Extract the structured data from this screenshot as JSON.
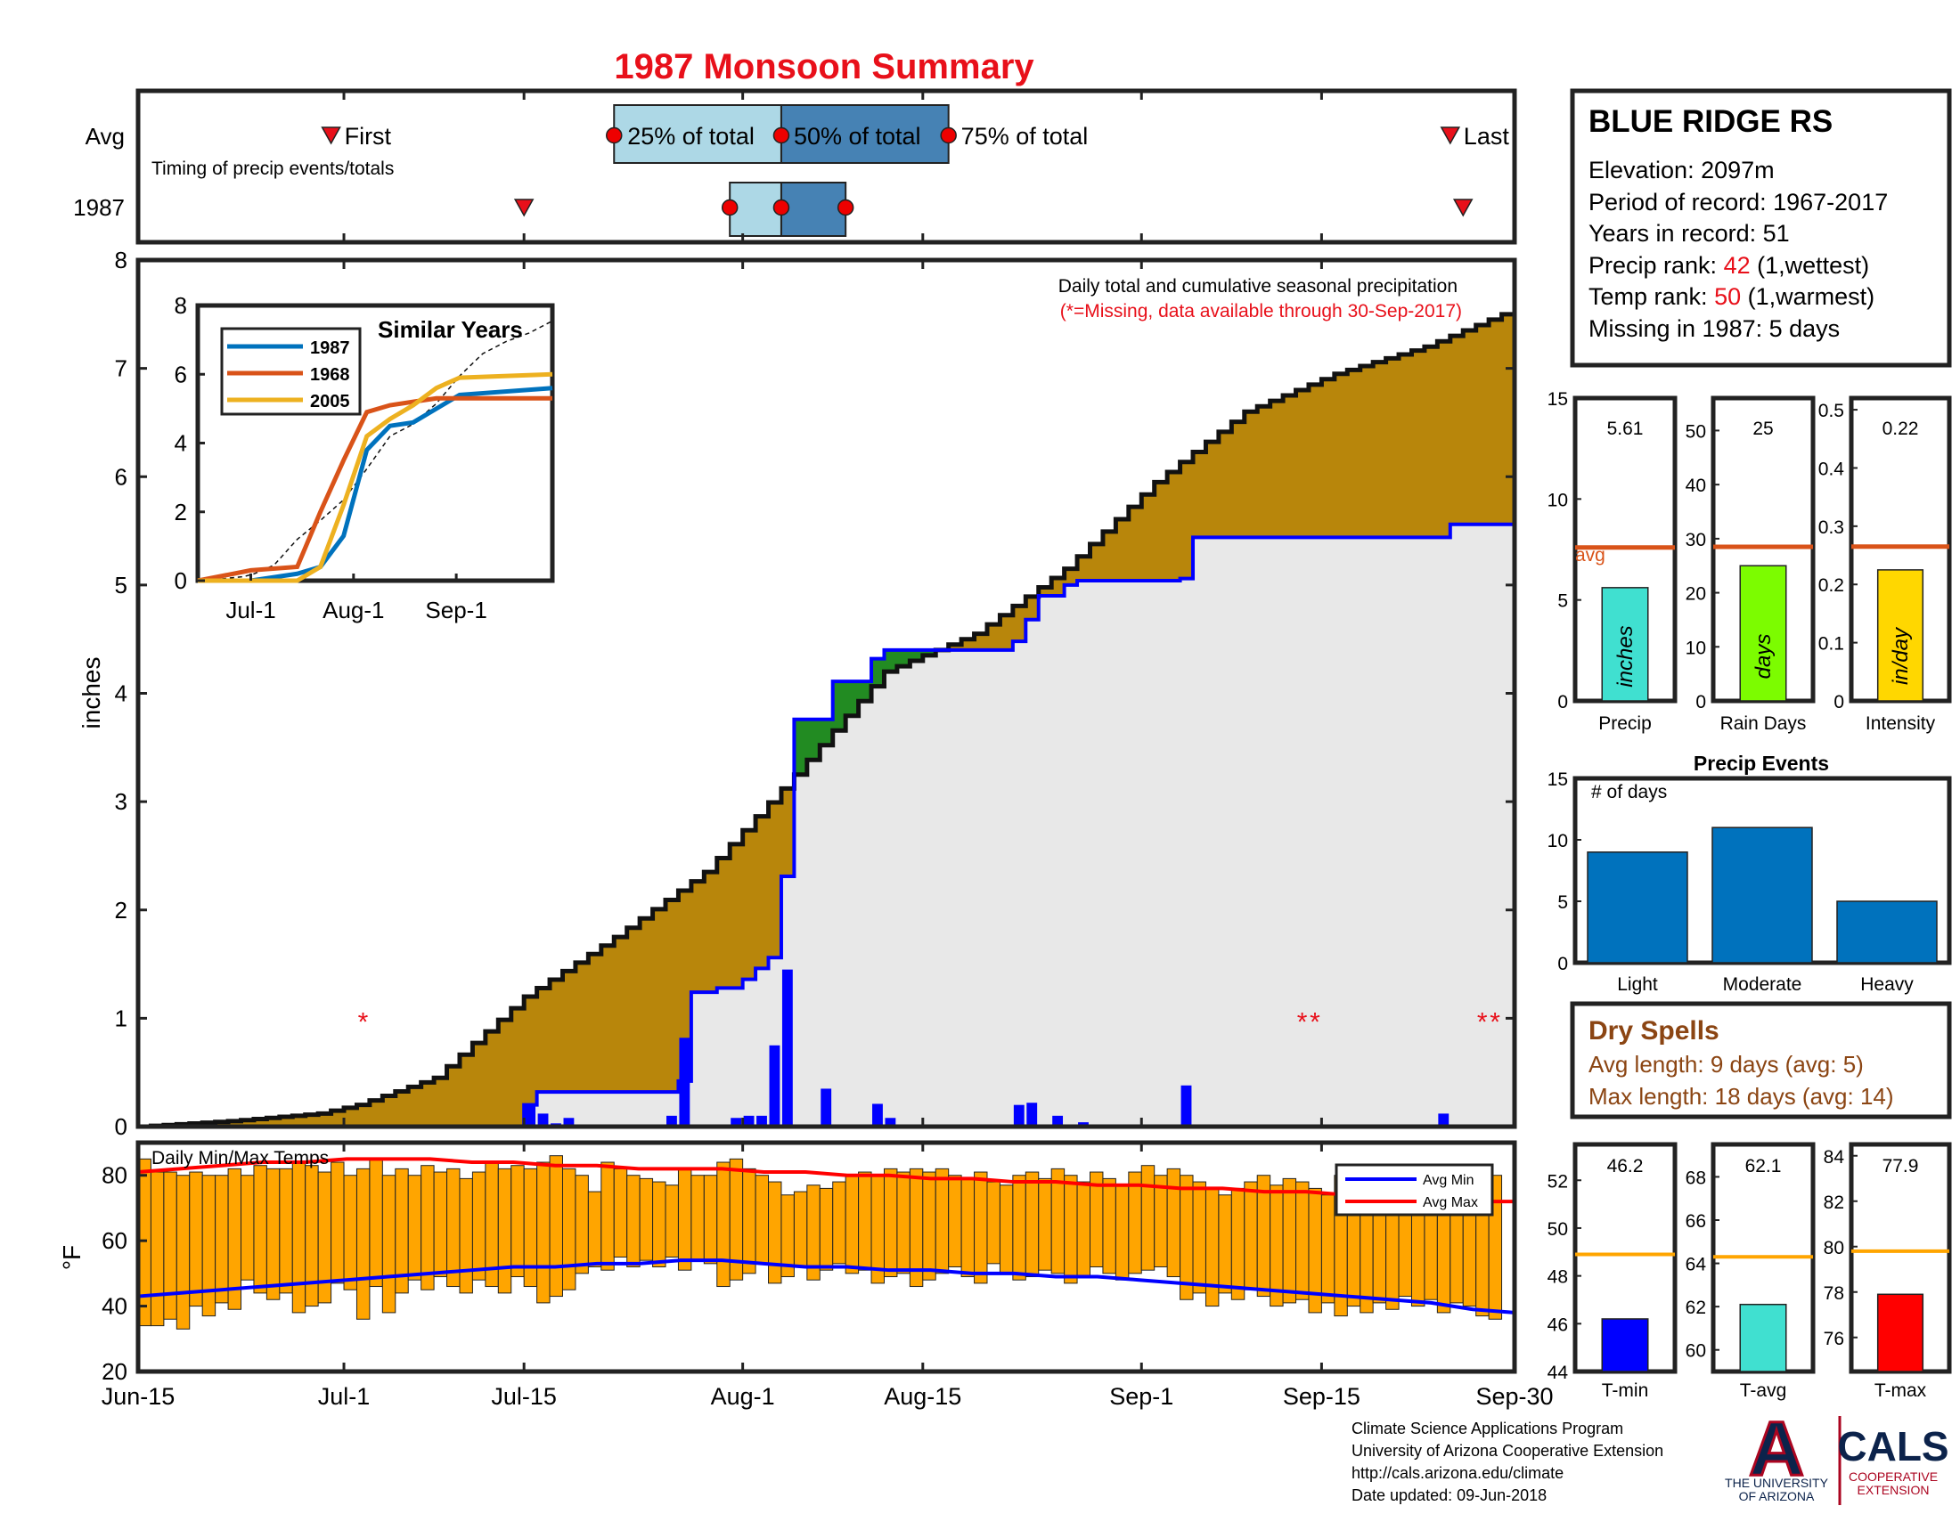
{
  "title": "1987 Monsoon Summary",
  "colors": {
    "title": "#e8101a",
    "cum_avg_fill": "#b8860b",
    "wet_fill": "#228b22",
    "normal_fill": "#e8e8e8",
    "line_1987": "#0000ff",
    "daily_bar": "#0000ff",
    "temp_bar": "#ffa500",
    "avg_min": "#0000ff",
    "avg_max": "#ff0000",
    "avg_ref_line": "#d95319",
    "temp_ref_line": "#ffa500",
    "q1_box": "#add8e6",
    "q2_box": "#4682b4",
    "events_bar": "#0072bd",
    "dry_spell_text": "#8b4513",
    "rank_highlight": "#e8101a"
  },
  "timing": {
    "row_labels": [
      "Avg",
      "1987"
    ],
    "caption": "Timing of precip events/totals",
    "first_label": "First",
    "last_label": "Last",
    "q25_label": "25% of total",
    "q50_label": "50% of total",
    "q75_label": "75% of total",
    "avg": {
      "first": "2024-06-30",
      "q25": "2024-07-22",
      "q50": "2024-08-04",
      "q75": "2024-08-17",
      "last": "2024-09-25"
    },
    "y1987": {
      "first": "2024-07-15",
      "q25": "2024-07-31",
      "q50": "2024-08-04",
      "q75": "2024-08-09",
      "last": "2024-09-26"
    }
  },
  "main_chart": {
    "caption": "Daily total and cumulative seasonal precipitation",
    "missing_note": "(*=Missing, data available through 30-Sep-2017)",
    "ylabel": "inches",
    "ylim": [
      0,
      8
    ],
    "yticks": [
      "0",
      "1",
      "2",
      "3",
      "4",
      "5",
      "6",
      "7",
      "8"
    ],
    "missing_marker": "*"
  },
  "inset": {
    "title": "Similar Years",
    "ylim": [
      0,
      8
    ],
    "yticks": [
      "0",
      "2",
      "4",
      "6",
      "8"
    ],
    "xticks": [
      "Jul-1",
      "Aug-1",
      "Sep-1"
    ],
    "legend": [
      "1987",
      "1968",
      "2005"
    ],
    "series_colors": [
      "#0072bd",
      "#d95319",
      "#edb120"
    ]
  },
  "temps": {
    "caption": "Daily Min/Max Temps",
    "ylabel": "°F",
    "ylim": [
      20,
      90
    ],
    "yticks": [
      "20",
      "40",
      "60",
      "80"
    ],
    "legend_min": "Avg Min",
    "legend_max": "Avg Max"
  },
  "x_axis": {
    "ticks": [
      "Jun-15",
      "Jul-1",
      "Jul-15",
      "Aug-1",
      "Aug-15",
      "Sep-1",
      "Sep-15",
      "Sep-30"
    ]
  },
  "station": {
    "name": "BLUE RIDGE RS",
    "elevation": "Elevation: 2097m",
    "period": "Period of record: 1967-2017",
    "years": "Years in record: 51",
    "precip_rank_prefix": "Precip rank: ",
    "precip_rank_value": "42",
    "precip_rank_suffix": " (1,wettest)",
    "temp_rank_prefix": "Temp rank: ",
    "temp_rank_value": "50",
    "temp_rank_suffix": " (1,warmest)",
    "missing": "Missing in 1987: 5 days"
  },
  "stats": {
    "avg_label": "avg",
    "precip": {
      "value_label": "5.61",
      "value": 5.61,
      "avg": 7.6,
      "ymax": 15,
      "yticks": [
        "0",
        "5",
        "10",
        "15"
      ],
      "unit": "inches",
      "label": "Precip",
      "color": "#40e0d0"
    },
    "raindays": {
      "value_label": "25",
      "value": 25,
      "avg": 28.5,
      "ymax": 56,
      "yticks": [
        "0",
        "10",
        "20",
        "30",
        "40",
        "50"
      ],
      "unit": "days",
      "label": "Rain Days",
      "color": "#7cfc00"
    },
    "intensity": {
      "value_label": "0.22",
      "value": 0.225,
      "avg": 0.265,
      "ymax": 0.52,
      "yticks": [
        "0",
        "0.1",
        "0.2",
        "0.3",
        "0.4",
        "0.5"
      ],
      "unit": "in/day",
      "label": "Intensity",
      "color": "#ffd700"
    }
  },
  "events": {
    "title": "Precip Events",
    "ylabel": "# of days",
    "categories": [
      "Light",
      "Moderate",
      "Heavy"
    ],
    "values": [
      9,
      11,
      5
    ],
    "ymax": 15,
    "yticks": [
      "0",
      "5",
      "10",
      "15"
    ]
  },
  "dry_spells": {
    "title": "Dry Spells",
    "avg_length": "Avg length: 9 days (avg: 5)",
    "max_length": "Max length: 18 days (avg: 14)"
  },
  "temp_stats": {
    "tmin": {
      "value_label": "46.2",
      "value": 46.2,
      "avg": 48.9,
      "ylim": [
        44,
        53.5
      ],
      "yticks": [
        "44",
        "46",
        "48",
        "50",
        "52"
      ],
      "label": "T-min",
      "color": "#0000ff"
    },
    "tavg": {
      "value_label": "62.1",
      "value": 62.1,
      "avg": 64.3,
      "ylim": [
        59,
        69.5
      ],
      "yticks": [
        "60",
        "62",
        "64",
        "66",
        "68"
      ],
      "label": "T-avg",
      "color": "#40e0d0"
    },
    "tmax": {
      "value_label": "77.9",
      "value": 77.9,
      "avg": 79.8,
      "ylim": [
        74.5,
        84.5
      ],
      "yticks": [
        "76",
        "78",
        "80",
        "82",
        "84"
      ],
      "label": "T-max",
      "color": "#ff0000"
    }
  },
  "footer": {
    "line1": "Climate Science Applications Program",
    "line2": "University of Arizona Cooperative Extension",
    "line3": "http://cals.arizona.edu/climate",
    "line4": " Date updated: 09-Jun-2018"
  },
  "logo": {
    "letter": "A",
    "ua_line1": "THE UNIVERSITY",
    "ua_line2": "OF ARIZONA",
    "cals": "CALS",
    "cals_line1": "COOPERATIVE",
    "cals_line2": "EXTENSION"
  },
  "chart_data": {
    "type": "area",
    "title": "1987 Monsoon Summary",
    "ylabel": "inches",
    "ylim": [
      0,
      8
    ],
    "daily_precip_1987": [
      [
        "2024-07-15",
        0.2
      ],
      [
        "2024-07-16",
        0.12
      ],
      [
        "2024-07-17",
        0.03
      ],
      [
        "2024-07-18",
        0.08
      ],
      [
        "2024-07-26",
        0.1
      ],
      [
        "2024-07-27",
        0.82
      ],
      [
        "2024-07-29",
        0.02
      ],
      [
        "2024-07-31",
        0.08
      ],
      [
        "2024-08-01",
        0.1
      ],
      [
        "2024-08-02",
        0.1
      ],
      [
        "2024-08-03",
        0.75
      ],
      [
        "2024-08-04",
        1.45
      ],
      [
        "2024-08-07",
        0.35
      ],
      [
        "2024-08-11",
        0.21
      ],
      [
        "2024-08-12",
        0.08
      ],
      [
        "2024-08-22",
        0.2
      ],
      [
        "2024-08-23",
        0.22
      ],
      [
        "2024-08-25",
        0.1
      ],
      [
        "2024-08-27",
        0.04
      ],
      [
        "2024-09-03",
        0.02
      ],
      [
        "2024-09-04",
        0.38
      ],
      [
        "2024-09-24",
        0.12
      ]
    ],
    "cumulative_1987": [
      [
        "2024-06-15",
        0
      ],
      [
        "2024-07-14",
        0
      ],
      [
        "2024-07-15",
        0.2
      ],
      [
        "2024-07-16",
        0.32
      ],
      [
        "2024-07-26",
        0.32
      ],
      [
        "2024-07-27",
        0.42
      ],
      [
        "2024-07-28",
        1.24
      ],
      [
        "2024-07-30",
        1.28
      ],
      [
        "2024-08-01",
        1.36
      ],
      [
        "2024-08-02",
        1.46
      ],
      [
        "2024-08-03",
        1.56
      ],
      [
        "2024-08-04",
        2.31
      ],
      [
        "2024-08-05",
        3.76
      ],
      [
        "2024-08-07",
        3.76
      ],
      [
        "2024-08-08",
        4.11
      ],
      [
        "2024-08-11",
        4.32
      ],
      [
        "2024-08-12",
        4.4
      ],
      [
        "2024-08-22",
        4.48
      ],
      [
        "2024-08-23",
        4.68
      ],
      [
        "2024-08-24",
        4.9
      ],
      [
        "2024-08-26",
        5.0
      ],
      [
        "2024-08-27",
        5.04
      ],
      [
        "2024-09-04",
        5.06
      ],
      [
        "2024-09-05",
        5.44
      ],
      [
        "2024-09-24",
        5.44
      ],
      [
        "2024-09-25",
        5.56
      ],
      [
        "2024-09-30",
        5.56
      ]
    ],
    "cumulative_avg": [
      [
        "2024-06-15",
        0
      ],
      [
        "2024-06-22",
        0.05
      ],
      [
        "2024-06-29",
        0.12
      ],
      [
        "2024-07-02",
        0.2
      ],
      [
        "2024-07-08",
        0.45
      ],
      [
        "2024-07-15",
        1.2
      ],
      [
        "2024-07-22",
        1.75
      ],
      [
        "2024-07-29",
        2.35
      ],
      [
        "2024-08-05",
        3.25
      ],
      [
        "2024-08-12",
        4.2
      ],
      [
        "2024-08-19",
        4.55
      ],
      [
        "2024-08-26",
        5.15
      ],
      [
        "2024-09-02",
        5.95
      ],
      [
        "2024-09-09",
        6.6
      ],
      [
        "2024-09-16",
        6.95
      ],
      [
        "2024-09-23",
        7.2
      ],
      [
        "2024-09-30",
        7.55
      ]
    ],
    "missing_days": [
      "2024-07-02",
      "2024-09-13",
      "2024-09-14",
      "2024-09-27",
      "2024-09-28"
    ],
    "similar_years": {
      "x": [
        "2024-06-15",
        "2024-07-01",
        "2024-07-15",
        "2024-07-22",
        "2024-07-29",
        "2024-08-05",
        "2024-08-12",
        "2024-08-19",
        "2024-08-26",
        "2024-09-02",
        "2024-09-30"
      ],
      "series": [
        {
          "name": "1987",
          "values": [
            0,
            0,
            0.2,
            0.4,
            1.3,
            3.8,
            4.5,
            4.6,
            5.0,
            5.4,
            5.6
          ]
        },
        {
          "name": "1968",
          "values": [
            0,
            0.3,
            0.4,
            2.0,
            3.5,
            4.9,
            5.1,
            5.2,
            5.3,
            5.3,
            5.3
          ]
        },
        {
          "name": "2005",
          "values": [
            0,
            0,
            0,
            0.4,
            2.2,
            4.2,
            4.7,
            5.1,
            5.6,
            5.9,
            6.0
          ]
        }
      ]
    },
    "temps_daily": [
      [
        34,
        85
      ],
      [
        34,
        81
      ],
      [
        36,
        81
      ],
      [
        33,
        80
      ],
      [
        40,
        81
      ],
      [
        37,
        80
      ],
      [
        41,
        80
      ],
      [
        39,
        82
      ],
      [
        48,
        80
      ],
      [
        44,
        83
      ],
      [
        42,
        82
      ],
      [
        44,
        82
      ],
      [
        38,
        84
      ],
      [
        40,
        83
      ],
      [
        41,
        81
      ],
      [
        47,
        84
      ],
      [
        45,
        80
      ],
      [
        36,
        82
      ],
      [
        46,
        85
      ],
      [
        38,
        80
      ],
      [
        44,
        82
      ],
      [
        48,
        80
      ],
      [
        45,
        83
      ],
      [
        49,
        81
      ],
      [
        46,
        82
      ],
      [
        44,
        79
      ],
      [
        48,
        81
      ],
      [
        46,
        84
      ],
      [
        44,
        82
      ],
      [
        49,
        83
      ],
      [
        46,
        82
      ],
      [
        41,
        84
      ],
      [
        43,
        86
      ],
      [
        45,
        82
      ],
      [
        50,
        80
      ],
      [
        52,
        75
      ],
      [
        51,
        84
      ],
      [
        55,
        82
      ],
      [
        52,
        80
      ],
      [
        54,
        79
      ],
      [
        52,
        78
      ],
      [
        55,
        77
      ],
      [
        51,
        82
      ],
      [
        54,
        80
      ],
      [
        53,
        80
      ],
      [
        46,
        84
      ],
      [
        48,
        85
      ],
      [
        50,
        82
      ],
      [
        53,
        80
      ],
      [
        47,
        78
      ],
      [
        49,
        74
      ],
      [
        52,
        75
      ],
      [
        48,
        77
      ],
      [
        51,
        76
      ],
      [
        53,
        78
      ],
      [
        50,
        80
      ],
      [
        51,
        81
      ],
      [
        47,
        80
      ],
      [
        49,
        82
      ],
      [
        50,
        81
      ],
      [
        46,
        82
      ],
      [
        48,
        81
      ],
      [
        50,
        82
      ],
      [
        52,
        80
      ],
      [
        49,
        79
      ],
      [
        47,
        81
      ],
      [
        53,
        78
      ],
      [
        50,
        77
      ],
      [
        48,
        80
      ],
      [
        49,
        81
      ],
      [
        51,
        79
      ],
      [
        50,
        82
      ],
      [
        47,
        80
      ],
      [
        49,
        78
      ],
      [
        52,
        81
      ],
      [
        50,
        79
      ],
      [
        48,
        77
      ],
      [
        50,
        81
      ],
      [
        51,
        83
      ],
      [
        52,
        80
      ],
      [
        49,
        82
      ],
      [
        42,
        80
      ],
      [
        44,
        78
      ],
      [
        40,
        76
      ],
      [
        44,
        74
      ],
      [
        42,
        76
      ],
      [
        45,
        78
      ],
      [
        43,
        80
      ],
      [
        40,
        77
      ],
      [
        41,
        79
      ],
      [
        42,
        78
      ],
      [
        38,
        76
      ],
      [
        41,
        74
      ],
      [
        37,
        80
      ],
      [
        40,
        78
      ],
      [
        38,
        76
      ],
      [
        41,
        75
      ],
      [
        39,
        77
      ],
      [
        43,
        80
      ],
      [
        40,
        79
      ],
      [
        42,
        78
      ],
      [
        38,
        75
      ],
      [
        41,
        72
      ],
      [
        40,
        74
      ],
      [
        37,
        76
      ],
      [
        36,
        80
      ]
    ],
    "temps_avg_min": [
      43,
      44,
      45,
      46,
      47,
      48,
      49,
      50,
      51,
      52,
      52,
      53,
      53,
      54,
      54,
      53,
      52,
      52,
      51,
      51,
      50,
      50,
      49,
      49,
      48,
      47,
      46,
      45,
      44,
      43,
      42,
      41,
      39,
      38
    ],
    "temps_avg_max": [
      81,
      82,
      83,
      84,
      84,
      85,
      85,
      85,
      84,
      84,
      83,
      83,
      82,
      82,
      82,
      81,
      81,
      80,
      80,
      79,
      79,
      78,
      78,
      77,
      77,
      76,
      76,
      75,
      75,
      74,
      73,
      73,
      72,
      72
    ]
  }
}
